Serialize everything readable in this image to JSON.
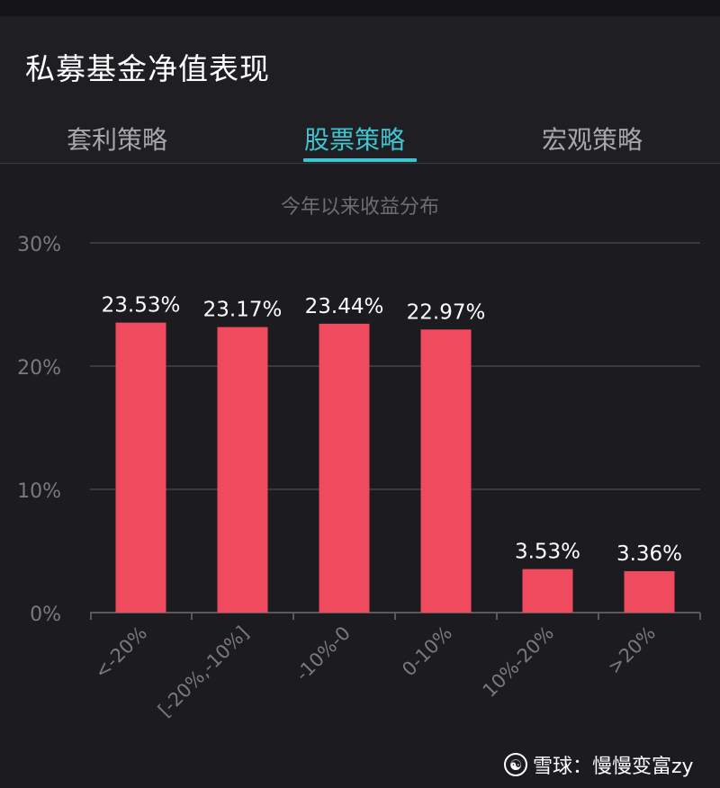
{
  "page": {
    "title": "私募基金净值表现",
    "tabs": [
      {
        "label": "套利策略",
        "active": false
      },
      {
        "label": "股票策略",
        "active": true
      },
      {
        "label": "宏观策略",
        "active": false
      }
    ],
    "chart_title": "今年以来收益分布",
    "watermark": {
      "logo_icon": "snowball-logo-icon",
      "text": "雪球：慢慢变富zy"
    }
  },
  "colors": {
    "background": "#1c1b1f",
    "bar": "#f04a5e",
    "accent": "#3fc4d2",
    "grid": "#3a393d",
    "axis_label": "#7a797e",
    "data_label": "#ffffff"
  },
  "chart_data": {
    "type": "bar",
    "title": "今年以来收益分布",
    "categories": [
      "<-20%",
      "[-20%,-10%]",
      "-10%-0",
      "0-10%",
      "10%-20%",
      ">20%"
    ],
    "values": [
      23.53,
      23.17,
      23.44,
      22.97,
      3.53,
      3.36
    ],
    "data_labels": [
      "23.53%",
      "23.17%",
      "23.44%",
      "22.97%",
      "3.53%",
      "3.36%"
    ],
    "yticks": [
      "0%",
      "10%",
      "20%",
      "30%"
    ],
    "ylim": [
      0,
      30
    ],
    "grid": true,
    "xlabel": "",
    "ylabel": ""
  }
}
